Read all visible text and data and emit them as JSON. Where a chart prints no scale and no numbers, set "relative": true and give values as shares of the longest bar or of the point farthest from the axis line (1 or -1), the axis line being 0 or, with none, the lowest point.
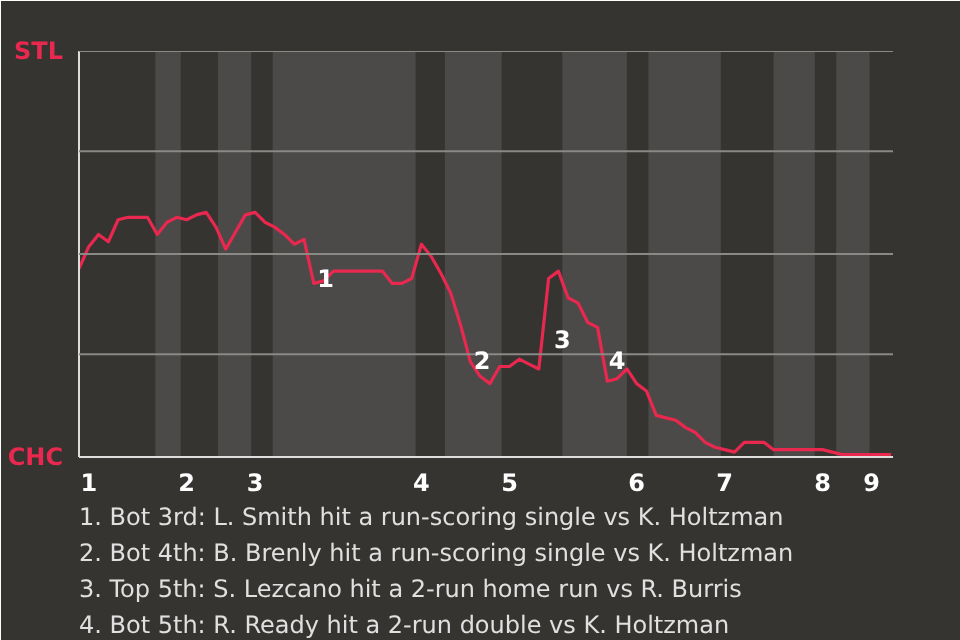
{
  "chart_data": {
    "type": "line",
    "relative": true,
    "categories": [
      null,
      "1",
      null,
      null,
      null,
      null,
      null,
      null,
      null,
      null,
      null,
      "2",
      null,
      null,
      null,
      null,
      null,
      null,
      "3",
      null,
      null,
      null,
      null,
      null,
      null,
      null,
      null,
      null,
      null,
      null,
      null,
      null,
      null,
      null,
      null,
      "4",
      null,
      null,
      null,
      null,
      null,
      null,
      null,
      null,
      "5",
      null,
      null,
      null,
      null,
      null,
      null,
      null,
      null,
      null,
      null,
      null,
      null,
      "6",
      null,
      null,
      null,
      null,
      null,
      null,
      null,
      null,
      "7",
      null,
      null,
      null,
      null,
      null,
      null,
      null,
      null,
      null,
      "8",
      null,
      null,
      null,
      null,
      "9",
      null,
      null
    ],
    "marker": "none",
    "line_style": "solid",
    "ref_lines": [
      {
        "axis": "y",
        "value": 0.42,
        "color": "#8a8986"
      },
      {
        "axis": "y",
        "value": 0.83,
        "color": "#8a8986"
      },
      {
        "axis": "y",
        "value": 1.25,
        "color": "#8a8986"
      },
      {
        "axis": "y",
        "value": 1.66,
        "color": "#8a8986"
      }
    ],
    "series": [
      {
        "color": "#e8284f",
        "values": [
          0.77,
          0.86,
          0.91,
          0.88,
          0.97,
          0.98,
          0.98,
          0.98,
          0.91,
          0.96,
          0.98,
          0.97,
          0.99,
          1.0,
          0.94,
          0.85,
          0.92,
          0.99,
          1.0,
          0.96,
          0.94,
          0.91,
          0.87,
          0.89,
          0.71,
          0.72,
          0.76,
          0.76,
          0.76,
          0.76,
          0.76,
          0.76,
          0.71,
          0.71,
          0.73,
          0.87,
          0.82,
          0.75,
          0.67,
          0.54,
          0.39,
          0.33,
          0.3,
          0.37,
          0.37,
          0.4,
          0.38,
          0.36,
          0.73,
          0.76,
          0.65,
          0.63,
          0.55,
          0.53,
          0.31,
          0.32,
          0.36,
          0.3,
          0.27,
          0.17,
          0.16,
          0.15,
          0.12,
          0.1,
          0.06,
          0.04,
          0.03,
          0.02,
          0.06,
          0.06,
          0.06,
          0.03,
          0.03,
          0.03,
          0.03,
          0.03,
          0.03,
          0.02,
          0.01,
          0.01,
          0.01,
          0.01,
          0.01,
          0.01
        ]
      }
    ],
    "annotations": [
      "STL",
      "CHC",
      "1",
      "2",
      "3",
      "4",
      "1. Bot 3rd: L. Smith hit a run-scoring single vs K. Holtzman",
      "2. Bot 4th: B. Brenly hit a run-scoring single vs K. Holtzman",
      "3. Top 5th: S. Lezcano hit a 2-run home run vs R. Burris",
      "4. Bot 5th: R. Ready hit a 2-run double vs K. Holtzman"
    ]
  }
}
